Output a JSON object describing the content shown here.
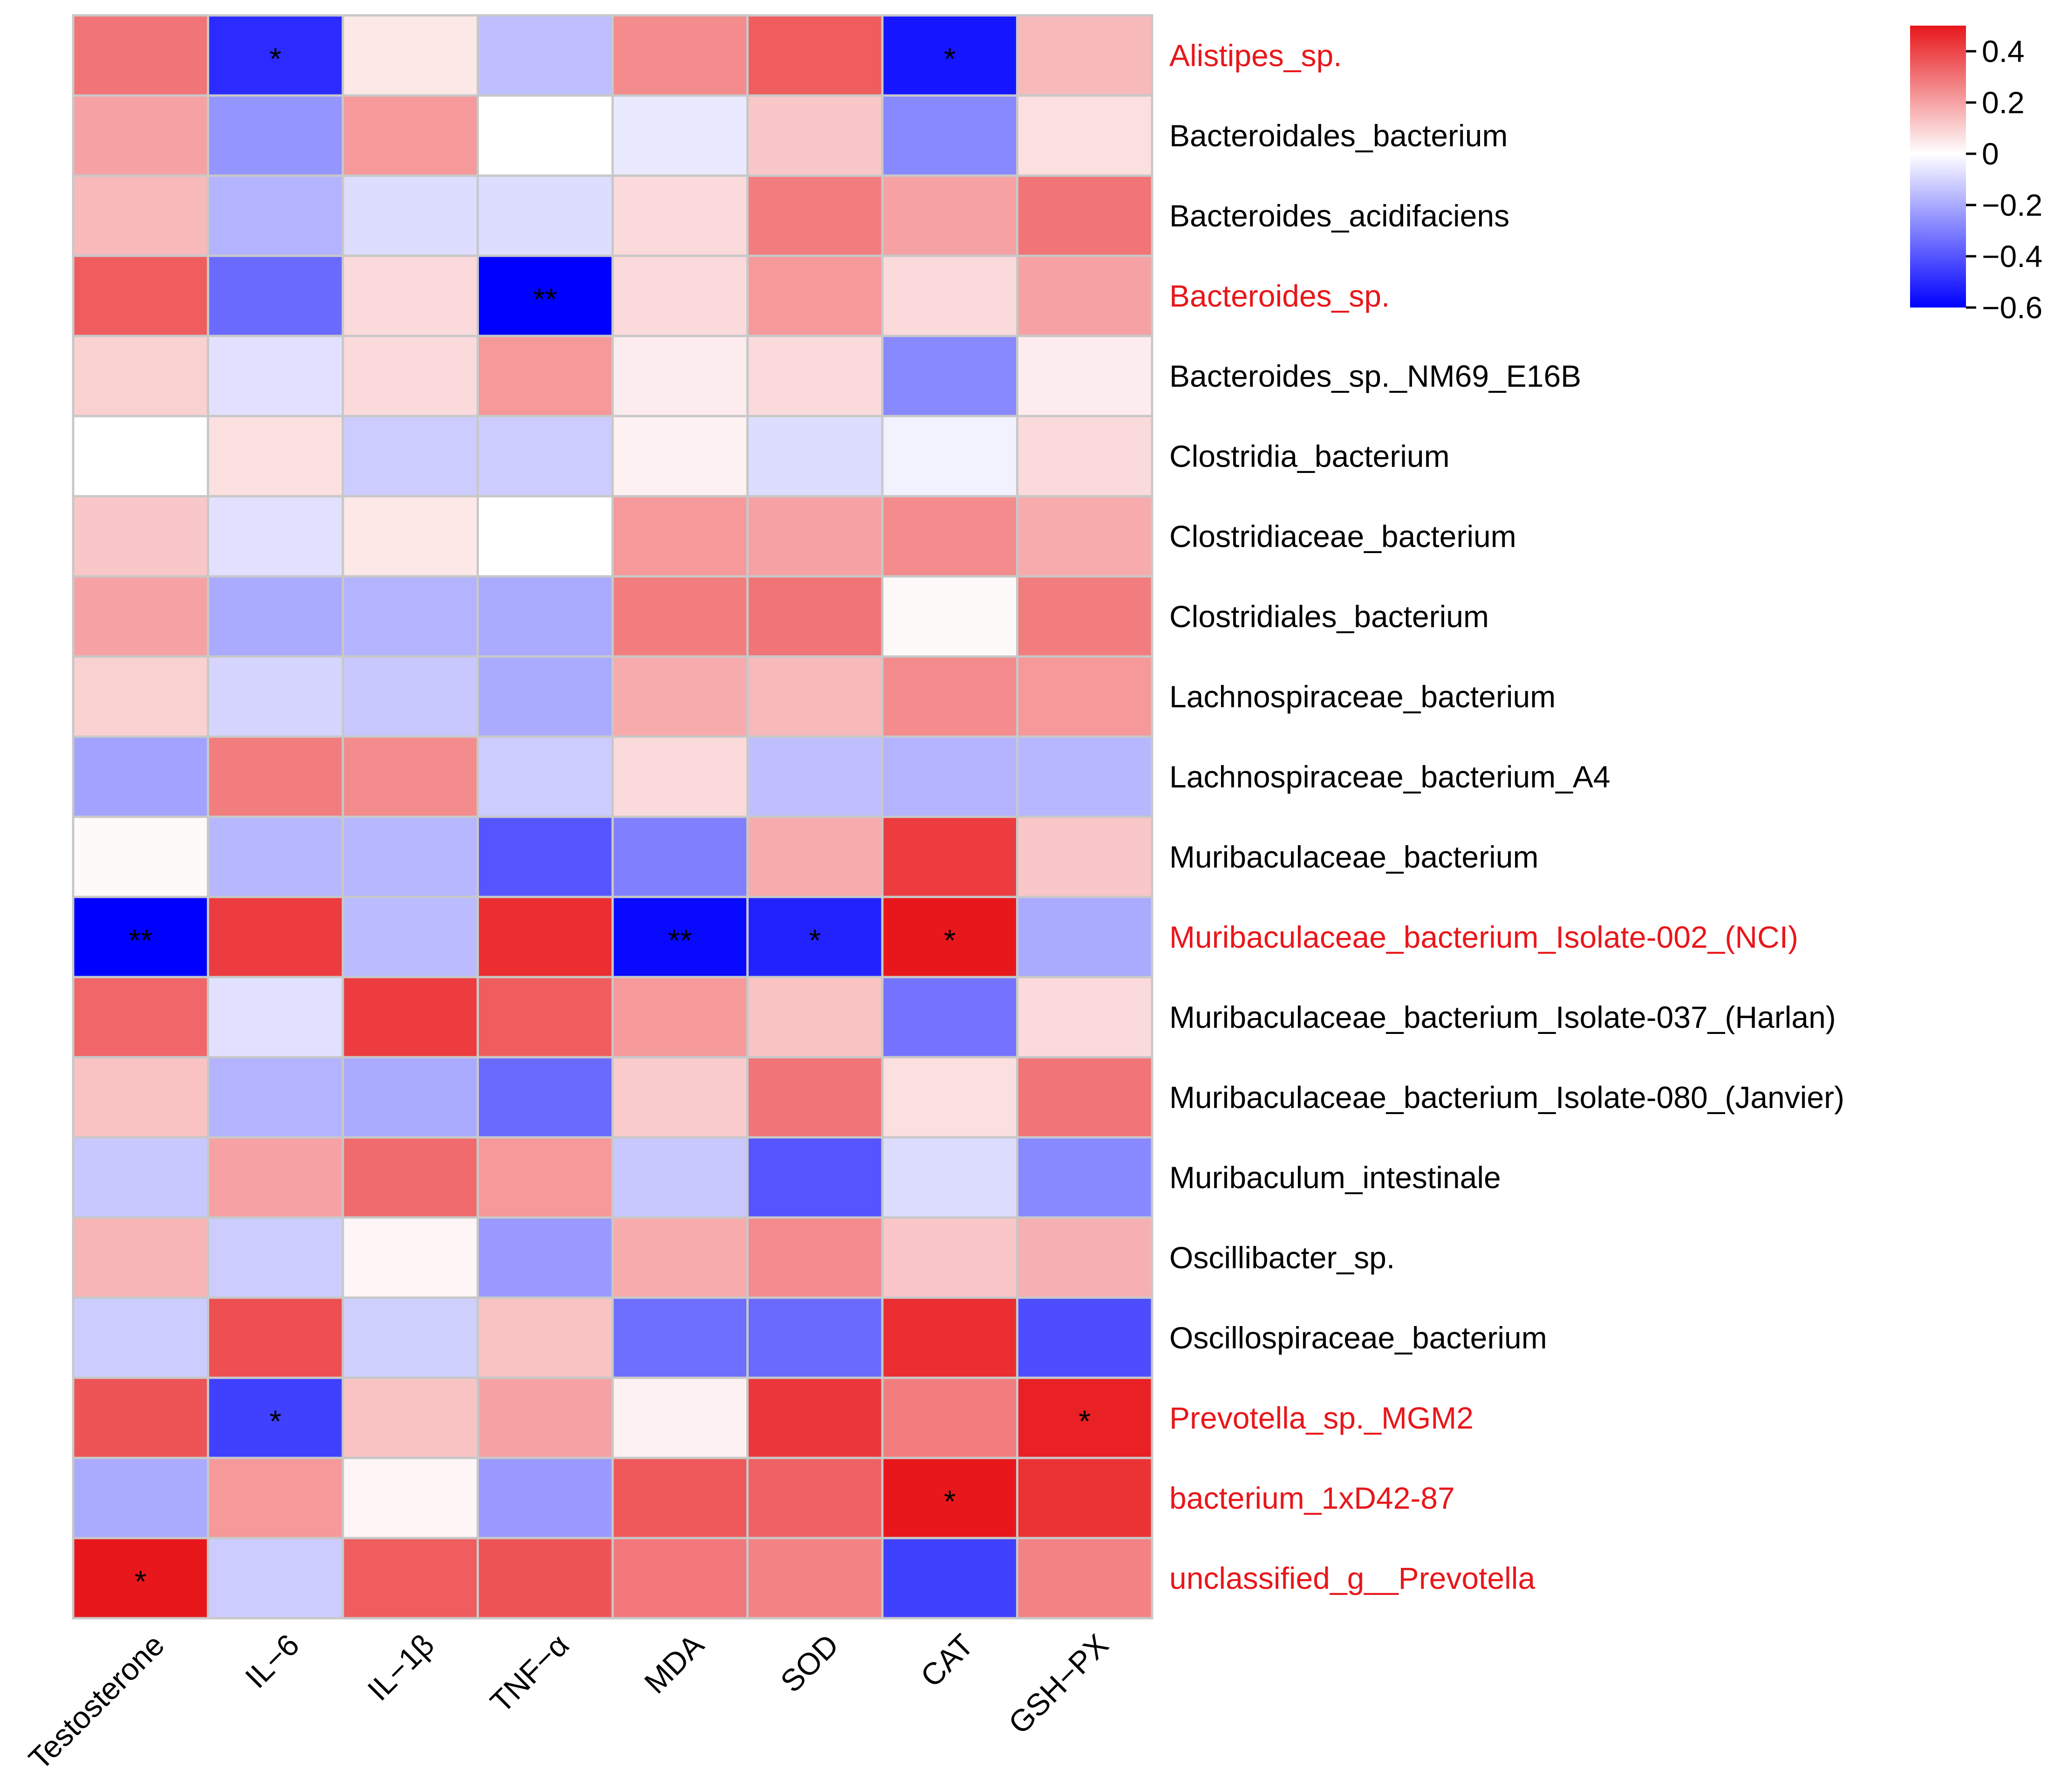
{
  "chart_data": {
    "type": "heatmap",
    "title": "",
    "xlabel": "",
    "ylabel": "",
    "columns": [
      "Testosterone",
      "IL−6",
      "IL−1β",
      "TNF−α",
      "MDA",
      "SOD",
      "CAT",
      "GSH−PX"
    ],
    "rows": [
      {
        "label": "Alistipes_sp.",
        "highlight": true
      },
      {
        "label": "Bacteroidales_bacterium",
        "highlight": false
      },
      {
        "label": "Bacteroides_acidifaciens",
        "highlight": false
      },
      {
        "label": "Bacteroides_sp.",
        "highlight": true
      },
      {
        "label": "Bacteroides_sp._NM69_E16B",
        "highlight": false
      },
      {
        "label": "Clostridia_bacterium",
        "highlight": false
      },
      {
        "label": "Clostridiaceae_bacterium",
        "highlight": false
      },
      {
        "label": "Clostridiales_bacterium",
        "highlight": false
      },
      {
        "label": "Lachnospiraceae_bacterium",
        "highlight": false
      },
      {
        "label": "Lachnospiraceae_bacterium_A4",
        "highlight": false
      },
      {
        "label": "Muribaculaceae_bacterium",
        "highlight": false
      },
      {
        "label": "Muribaculaceae_bacterium_Isolate-002_(NCI)",
        "highlight": true
      },
      {
        "label": "Muribaculaceae_bacterium_Isolate-037_(Harlan)",
        "highlight": false
      },
      {
        "label": "Muribaculaceae_bacterium_Isolate-080_(Janvier)",
        "highlight": false
      },
      {
        "label": "Muribaculum_intestinale",
        "highlight": false
      },
      {
        "label": "Oscillibacter_sp.",
        "highlight": false
      },
      {
        "label": "Oscillospiraceae_bacterium",
        "highlight": false
      },
      {
        "label": "Prevotella_sp._MGM2",
        "highlight": true
      },
      {
        "label": "bacterium_1xD42-87",
        "highlight": true
      },
      {
        "label": "unclassified_g__Prevotella",
        "highlight": true
      }
    ],
    "values": [
      [
        0.3,
        -0.5,
        0.05,
        -0.15,
        0.25,
        0.35,
        -0.55,
        0.15
      ],
      [
        0.2,
        -0.25,
        0.22,
        0.0,
        -0.05,
        0.12,
        -0.28,
        0.07
      ],
      [
        0.15,
        -0.18,
        -0.08,
        -0.08,
        0.08,
        0.28,
        0.2,
        0.3
      ],
      [
        0.35,
        -0.35,
        0.08,
        -0.6,
        0.08,
        0.22,
        0.08,
        0.2
      ],
      [
        0.1,
        -0.07,
        0.08,
        0.22,
        0.04,
        0.08,
        -0.28,
        0.04
      ],
      [
        0.0,
        0.07,
        -0.12,
        -0.12,
        0.03,
        -0.08,
        -0.03,
        0.08
      ],
      [
        0.12,
        -0.07,
        0.05,
        0.0,
        0.22,
        0.2,
        0.25,
        0.18
      ],
      [
        0.2,
        -0.2,
        -0.18,
        -0.2,
        0.28,
        0.3,
        0.01,
        0.28
      ],
      [
        0.1,
        -0.1,
        -0.13,
        -0.2,
        0.18,
        0.15,
        0.25,
        0.22
      ],
      [
        -0.22,
        0.28,
        0.25,
        -0.12,
        0.08,
        -0.15,
        -0.18,
        -0.17
      ],
      [
        0.01,
        -0.17,
        -0.17,
        -0.4,
        -0.3,
        0.18,
        0.42,
        0.12
      ],
      [
        -0.6,
        0.42,
        -0.16,
        0.45,
        -0.58,
        -0.52,
        0.5,
        -0.2
      ],
      [
        0.33,
        -0.07,
        0.42,
        0.35,
        0.22,
        0.13,
        -0.33,
        0.08
      ],
      [
        0.13,
        -0.18,
        -0.2,
        -0.35,
        0.11,
        0.3,
        0.07,
        0.3
      ],
      [
        -0.13,
        0.2,
        0.32,
        0.22,
        -0.13,
        -0.4,
        -0.08,
        -0.28
      ],
      [
        0.16,
        -0.12,
        0.02,
        -0.24,
        0.18,
        0.25,
        0.12,
        0.17
      ],
      [
        -0.12,
        0.38,
        -0.11,
        0.13,
        -0.34,
        -0.35,
        0.45,
        -0.42
      ],
      [
        0.37,
        -0.45,
        0.13,
        0.2,
        0.03,
        0.43,
        0.28,
        0.48
      ],
      [
        -0.2,
        0.22,
        0.02,
        -0.24,
        0.36,
        0.34,
        0.52,
        0.44
      ],
      [
        0.52,
        -0.12,
        0.35,
        0.37,
        0.29,
        0.27,
        -0.45,
        0.27
      ]
    ],
    "significance": [
      [
        "",
        "*",
        "",
        "",
        "",
        "",
        "*",
        ""
      ],
      [
        "",
        "",
        "",
        "",
        "",
        "",
        "",
        ""
      ],
      [
        "",
        "",
        "",
        "",
        "",
        "",
        "",
        ""
      ],
      [
        "",
        "",
        "",
        "**",
        "",
        "",
        "",
        ""
      ],
      [
        "",
        "",
        "",
        "",
        "",
        "",
        "",
        ""
      ],
      [
        "",
        "",
        "",
        "",
        "",
        "",
        "",
        ""
      ],
      [
        "",
        "",
        "",
        "",
        "",
        "",
        "",
        ""
      ],
      [
        "",
        "",
        "",
        "",
        "",
        "",
        "",
        ""
      ],
      [
        "",
        "",
        "",
        "",
        "",
        "",
        "",
        ""
      ],
      [
        "",
        "",
        "",
        "",
        "",
        "",
        "",
        ""
      ],
      [
        "",
        "",
        "",
        "",
        "",
        "",
        "",
        ""
      ],
      [
        "**",
        "",
        "",
        "",
        "**",
        "*",
        "*",
        ""
      ],
      [
        "",
        "",
        "",
        "",
        "",
        "",
        "",
        ""
      ],
      [
        "",
        "",
        "",
        "",
        "",
        "",
        "",
        ""
      ],
      [
        "",
        "",
        "",
        "",
        "",
        "",
        "",
        ""
      ],
      [
        "",
        "",
        "",
        "",
        "",
        "",
        "",
        ""
      ],
      [
        "",
        "",
        "",
        "",
        "",
        "",
        "",
        ""
      ],
      [
        "",
        "*",
        "",
        "",
        "",
        "",
        "",
        "*"
      ],
      [
        "",
        "",
        "",
        "",
        "",
        "",
        "*",
        ""
      ],
      [
        "*",
        "",
        "",
        "",
        "",
        "",
        "",
        ""
      ]
    ],
    "colorbar": {
      "range": [
        -0.6,
        0.5
      ],
      "ticks": [
        0.4,
        0.2,
        0,
        -0.2,
        -0.4,
        -0.6
      ],
      "tick_labels": [
        "0.4",
        "0.2",
        "0",
        "−0.2",
        "−0.4",
        "−0.6"
      ],
      "colors": {
        "negative": "#0000ff",
        "zero": "#ffffff",
        "positive": "#e8171b"
      }
    },
    "highlight_color": "#e8171b",
    "label_color": "#000000",
    "grid_color": "#c8c8c8",
    "grid": true,
    "legend_position": "top-right"
  }
}
